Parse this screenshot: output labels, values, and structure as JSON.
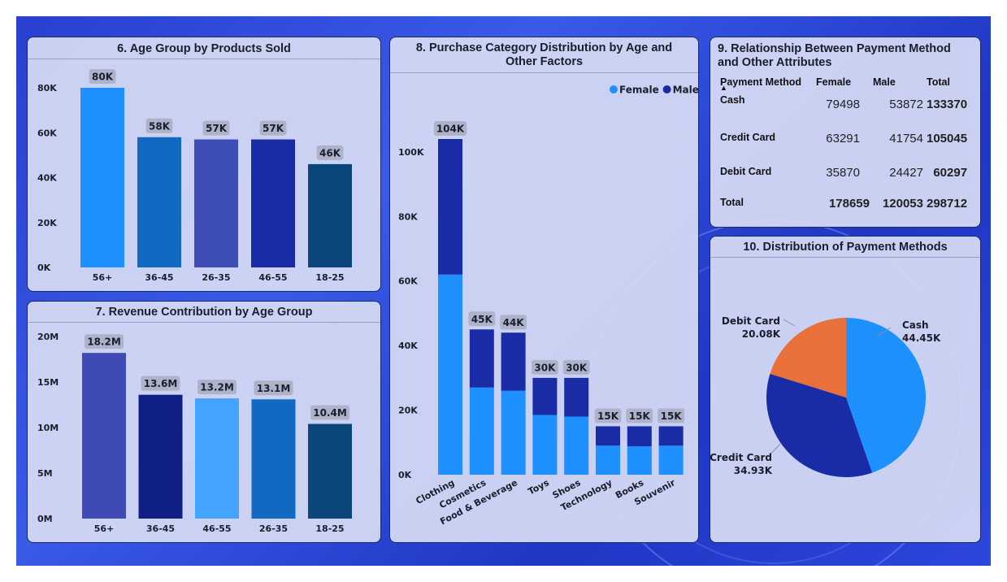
{
  "panel6": {
    "title": "6. Age Group by Products Sold",
    "chart_data": {
      "type": "bar",
      "categories": [
        "56+",
        "36-45",
        "26-35",
        "46-55",
        "18-25"
      ],
      "values": [
        80000,
        58000,
        57000,
        57000,
        46000
      ],
      "data_labels": [
        "80K",
        "58K",
        "57K",
        "57K",
        "46K"
      ],
      "yticks": [
        "0K",
        "20K",
        "40K",
        "60K",
        "80K"
      ],
      "ylim": [
        0,
        80000
      ],
      "colors": [
        "#1e90ff",
        "#1269c2",
        "#3d4db5",
        "#1a2ba6",
        "#0a467c"
      ]
    }
  },
  "panel7": {
    "title": "7. Revenue Contribution by Age Group",
    "chart_data": {
      "type": "bar",
      "categories": [
        "56+",
        "36-45",
        "46-55",
        "26-35",
        "18-25"
      ],
      "values": [
        18.2,
        13.6,
        13.2,
        13.1,
        10.4
      ],
      "data_labels": [
        "18.2M",
        "13.6M",
        "13.2M",
        "13.1M",
        "10.4M"
      ],
      "yticks": [
        "0M",
        "5M",
        "10M",
        "15M",
        "20M"
      ],
      "ylim": [
        0,
        20
      ],
      "colors": [
        "#3e4bb4",
        "#0f1f86",
        "#43a3ff",
        "#1269c2",
        "#0a467c"
      ]
    }
  },
  "panel8": {
    "title": "8. Purchase Category Distribution by Age and Other Factors",
    "chart_data": {
      "type": "bar",
      "stacked": true,
      "categories": [
        "Clothing",
        "Cosmetics",
        "Food & Beverage",
        "Toys",
        "Shoes",
        "Technology",
        "Books",
        "Souvenir"
      ],
      "series": [
        {
          "name": "Female",
          "color": "#1e90ff",
          "values": [
            62000,
            27000,
            26000,
            18500,
            18000,
            9000,
            8800,
            9000
          ]
        },
        {
          "name": "Male",
          "color": "#1a2ba6",
          "values": [
            42000,
            18000,
            18000,
            11500,
            12000,
            6000,
            6200,
            6000
          ]
        }
      ],
      "totals_labels": [
        "104K",
        "45K",
        "44K",
        "30K",
        "30K",
        "15K",
        "15K",
        "15K"
      ],
      "yticks": [
        "0K",
        "20K",
        "40K",
        "60K",
        "80K",
        "100K"
      ],
      "ylim": [
        0,
        104000
      ],
      "legend_position": "top-right"
    }
  },
  "panel9": {
    "title": "9. Relationship Between Payment Method and Other Attributes",
    "headers": [
      "Payment Method",
      "Female",
      "Male",
      "Total"
    ],
    "rows": [
      {
        "label": "Cash",
        "female": "79498",
        "male": "53872",
        "total": "133370"
      },
      {
        "label": "Credit Card",
        "female": "63291",
        "male": "41754",
        "total": "105045"
      },
      {
        "label": "Debit Card",
        "female": "35870",
        "male": "24427",
        "total": "60297"
      }
    ],
    "total_row": {
      "label": "Total",
      "female": "178659",
      "male": "120053",
      "total": "298712"
    }
  },
  "panel10": {
    "title": "10. Distribution of Payment Methods",
    "chart_data": {
      "type": "pie",
      "slices": [
        {
          "name": "Cash",
          "value": 44.45,
          "label": "44.45K",
          "color": "#1e90ff"
        },
        {
          "name": "Credit Card",
          "value": 34.93,
          "label": "34.93K",
          "color": "#1a2ba6"
        },
        {
          "name": "Debit Card",
          "value": 20.08,
          "label": "20.08K",
          "color": "#e8703a"
        }
      ]
    }
  }
}
